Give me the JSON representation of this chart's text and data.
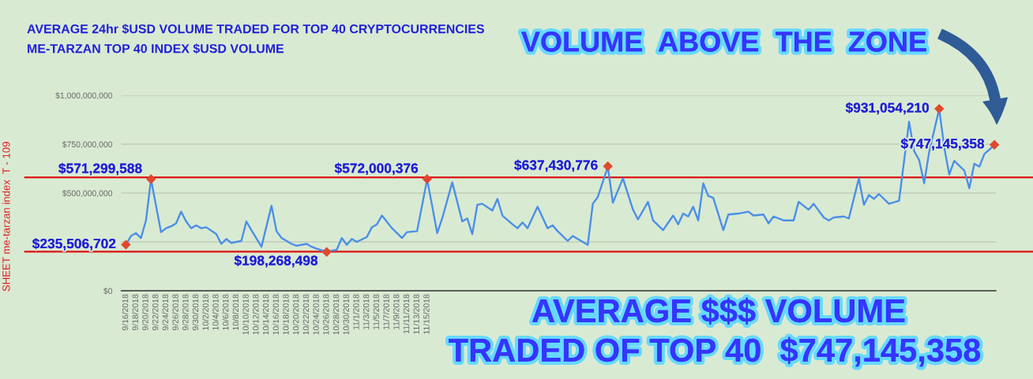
{
  "chart_data": {
    "type": "line",
    "title": "AVERAGE 24hr $USD VOLUME TRADED FOR TOP 40 CRYPTOCURRENCIES",
    "subtitle": "ME-TARZAN TOP 40 INDEX $USD VOLUME",
    "ylabel": "SHEET me-tarzan index  T - 109",
    "annotations": [
      "VOLUME  ABOVE  THE  ZONE",
      "AVERAGE $$$ VOLUME",
      "TRADED OF TOP 40  $747,145,358"
    ],
    "series": [
      {
        "color": "#4a8fe7",
        "x": [
          "2018-09-16",
          "2018-09-17",
          "2018-09-18",
          "2018-09-19",
          "2018-09-20",
          "2018-09-21",
          "2018-09-23",
          "2018-09-24",
          "2018-09-25",
          "2018-09-26",
          "2018-09-27",
          "2018-09-28",
          "2018-09-29",
          "2018-09-30",
          "2018-10-01",
          "2018-10-02",
          "2018-10-04",
          "2018-10-05",
          "2018-10-06",
          "2018-10-07",
          "2018-10-08",
          "2018-10-09",
          "2018-10-10",
          "2018-10-11",
          "2018-10-13",
          "2018-10-15",
          "2018-10-16",
          "2018-10-17",
          "2018-10-18",
          "2018-10-19",
          "2018-10-20",
          "2018-10-22",
          "2018-10-23",
          "2018-10-24",
          "2018-10-26",
          "2018-10-28",
          "2018-10-29",
          "2018-10-30",
          "2018-10-31",
          "2018-11-01",
          "2018-11-03",
          "2018-11-04",
          "2018-11-05",
          "2018-11-06",
          "2018-11-08",
          "2018-11-10",
          "2018-11-11",
          "2018-11-13",
          "2018-11-15",
          "2018-11-16",
          "2018-11-17",
          "2018-11-18",
          "2018-11-20",
          "2018-11-22",
          "2018-11-23",
          "2018-11-24",
          "2018-11-25",
          "2018-11-26",
          "2018-11-28",
          "2018-11-29",
          "2018-11-30",
          "2018-12-02",
          "2018-12-03",
          "2018-12-04",
          "2018-12-05",
          "2018-12-07",
          "2018-12-09",
          "2018-12-10",
          "2018-12-11",
          "2018-12-13",
          "2018-12-14",
          "2018-12-15",
          "2018-12-17",
          "2018-12-18",
          "2018-12-19",
          "2018-12-21",
          "2018-12-22",
          "2018-12-24",
          "2018-12-26",
          "2018-12-27",
          "2018-12-29",
          "2018-12-30",
          "2019-01-01",
          "2019-01-03",
          "2019-01-04",
          "2019-01-05",
          "2019-01-06",
          "2019-01-07",
          "2019-01-08",
          "2019-01-09",
          "2019-01-10",
          "2019-01-11",
          "2019-01-13",
          "2019-01-14",
          "2019-01-16",
          "2019-01-18",
          "2019-01-19",
          "2019-01-21",
          "2019-01-22",
          "2019-01-23",
          "2019-01-25",
          "2019-01-27",
          "2019-01-28",
          "2019-01-30",
          "2019-01-31",
          "2019-02-02",
          "2019-02-03",
          "2019-02-04",
          "2019-02-06",
          "2019-02-07",
          "2019-02-09",
          "2019-02-10",
          "2019-02-11",
          "2019-02-12",
          "2019-02-13",
          "2019-02-15",
          "2019-02-17",
          "2019-02-19",
          "2019-02-20",
          "2019-02-21",
          "2019-02-22",
          "2019-02-23",
          "2019-02-25",
          "2019-02-26",
          "2019-02-27",
          "2019-02-28",
          "2019-03-02",
          "2019-03-03",
          "2019-03-04",
          "2019-03-05",
          "2019-03-06",
          "2019-03-08"
        ],
        "values": [
          235000000,
          280000000,
          295000000,
          270000000,
          360000000,
          570000000,
          300000000,
          320000000,
          330000000,
          345000000,
          405000000,
          355000000,
          320000000,
          335000000,
          320000000,
          325000000,
          290000000,
          240000000,
          265000000,
          245000000,
          250000000,
          255000000,
          355000000,
          310000000,
          225000000,
          435000000,
          305000000,
          270000000,
          255000000,
          240000000,
          230000000,
          240000000,
          225000000,
          215000000,
          200000000,
          210000000,
          270000000,
          235000000,
          265000000,
          250000000,
          275000000,
          325000000,
          340000000,
          385000000,
          320000000,
          270000000,
          300000000,
          305000000,
          570000000,
          435000000,
          295000000,
          370000000,
          555000000,
          355000000,
          370000000,
          290000000,
          440000000,
          445000000,
          410000000,
          470000000,
          385000000,
          340000000,
          320000000,
          350000000,
          320000000,
          430000000,
          320000000,
          335000000,
          305000000,
          255000000,
          280000000,
          265000000,
          235000000,
          445000000,
          480000000,
          635000000,
          450000000,
          575000000,
          415000000,
          365000000,
          455000000,
          360000000,
          310000000,
          385000000,
          340000000,
          395000000,
          380000000,
          430000000,
          360000000,
          550000000,
          485000000,
          475000000,
          310000000,
          390000000,
          395000000,
          405000000,
          385000000,
          390000000,
          345000000,
          380000000,
          360000000,
          360000000,
          455000000,
          415000000,
          445000000,
          375000000,
          360000000,
          375000000,
          380000000,
          370000000,
          575000000,
          440000000,
          490000000,
          470000000,
          495000000,
          445000000,
          460000000,
          865000000,
          715000000,
          670000000,
          550000000,
          710000000,
          930000000,
          735000000,
          595000000,
          665000000,
          615000000,
          525000000,
          650000000,
          635000000,
          700000000,
          745000000
        ]
      },
      {
        "type": "scatter",
        "color": "#e0492e",
        "marker": "diamond",
        "x": [
          "2018-09-16",
          "2018-09-21",
          "2018-10-26",
          "2018-11-15",
          "2018-12-21",
          "2019-02-25",
          "2019-03-08"
        ],
        "values": [
          235506702,
          571299588,
          198268498,
          572000376,
          637430776,
          931054210,
          747145358
        ],
        "value_labels": [
          "$235,506,702",
          "$571,299,588",
          "$198,268,498",
          "$572,000,376",
          "$637,430,776",
          "$931,054,210",
          "$747,145,358"
        ]
      }
    ],
    "xlim": [
      "2018-09-15T02:00",
      "2019-03-08T07:00"
    ],
    "xticks": [
      {
        "value": "2018-09-16",
        "label": "9/16/2018"
      },
      {
        "value": "2018-09-18",
        "label": "9/18/2018"
      },
      {
        "value": "2018-09-20",
        "label": "9/20/2018"
      },
      {
        "value": "2018-09-22",
        "label": "9/22/2018"
      },
      {
        "value": "2018-09-24",
        "label": "9/24/2018"
      },
      {
        "value": "2018-09-26",
        "label": "9/26/2018"
      },
      {
        "value": "2018-09-28",
        "label": "9/28/2018"
      },
      {
        "value": "2018-09-30",
        "label": "9/30/2018"
      },
      {
        "value": "2018-10-02",
        "label": "10/2/2018"
      },
      {
        "value": "2018-10-04",
        "label": "10/4/2018"
      },
      {
        "value": "2018-10-06",
        "label": "10/6/2018"
      },
      {
        "value": "2018-10-08",
        "label": "10/8/2018"
      },
      {
        "value": "2018-10-10",
        "label": "10/10/2018"
      },
      {
        "value": "2018-10-12",
        "label": "10/12/2018"
      },
      {
        "value": "2018-10-14",
        "label": "10/14/2018"
      },
      {
        "value": "2018-10-16",
        "label": "10/16/2018"
      },
      {
        "value": "2018-10-18",
        "label": "10/18/2018"
      },
      {
        "value": "2018-10-20",
        "label": "10/20/2018"
      },
      {
        "value": "2018-10-22",
        "label": "10/22/2018"
      },
      {
        "value": "2018-10-24",
        "label": "10/24/2018"
      },
      {
        "value": "2018-10-26",
        "label": "10/26/2018"
      },
      {
        "value": "2018-10-28",
        "label": "10/28/2018"
      },
      {
        "value": "2018-10-30",
        "label": "10/30/2018"
      },
      {
        "value": "2018-11-01",
        "label": "11/1/2018"
      },
      {
        "value": "2018-11-03",
        "label": "11/3/2018"
      },
      {
        "value": "2018-11-05",
        "label": "11/5/2018"
      },
      {
        "value": "2018-11-07",
        "label": "11/7/2018"
      },
      {
        "value": "2018-11-09",
        "label": "11/9/2018"
      },
      {
        "value": "2018-11-11",
        "label": "11/11/2018"
      },
      {
        "value": "2018-11-13",
        "label": "11/13/2018"
      },
      {
        "value": "2018-11-15",
        "label": "11/15/2018"
      }
    ],
    "ylim": [
      0,
      1000000000
    ],
    "yticks": [
      {
        "value": 0,
        "label": "$0"
      },
      {
        "value": 250000000,
        "label": null
      },
      {
        "value": 500000000,
        "label": "$500,000,000"
      },
      {
        "value": 750000000,
        "label": "$750,000,000"
      },
      {
        "value": 1000000000,
        "label": "$1,000,000,000"
      }
    ],
    "grid": "y",
    "ref_lines": [
      {
        "axis": "y",
        "value": 200000000,
        "color": "#dd1111"
      },
      {
        "axis": "y",
        "value": 580000000,
        "color": "#dd1111"
      }
    ]
  }
}
